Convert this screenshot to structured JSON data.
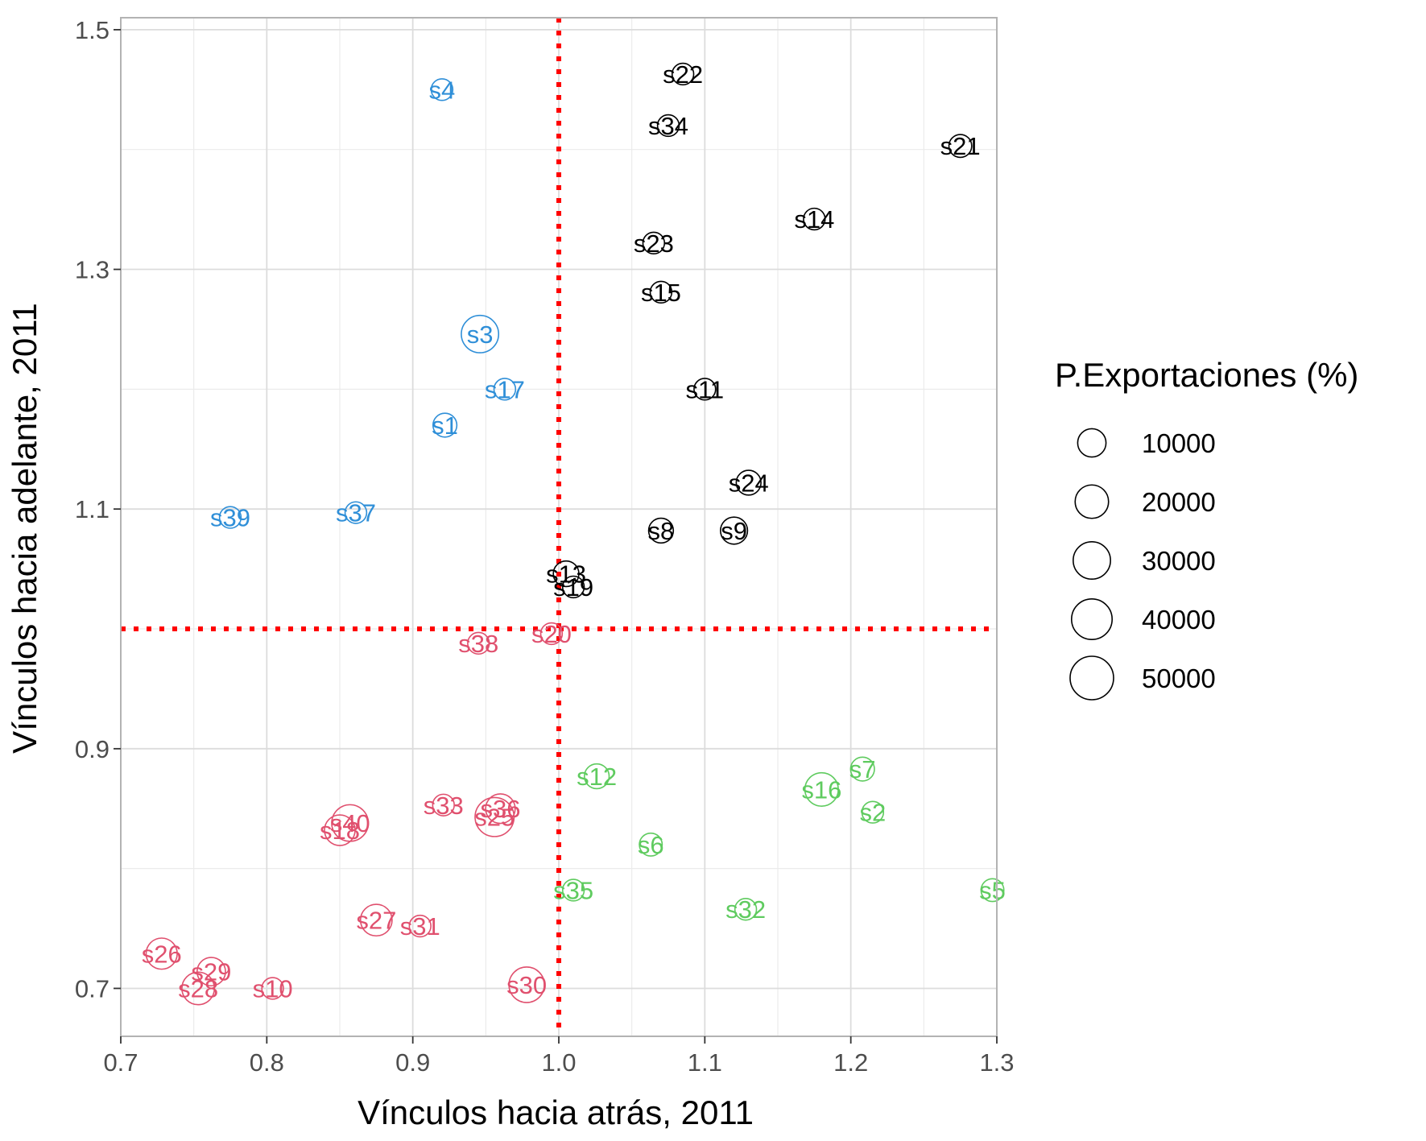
{
  "chart_data": {
    "type": "scatter",
    "xlabel": "Vínculos hacia atrás, 2011",
    "ylabel": "Vínculos hacia adelante, 2011",
    "xlim": [
      0.7,
      1.3
    ],
    "ylim": [
      0.66,
      1.51
    ],
    "xticks": [
      "0.7",
      "0.8",
      "0.9",
      "1.0",
      "1.1",
      "1.2",
      "1.3"
    ],
    "yticks": [
      "0.7",
      "0.9",
      "1.1",
      "1.3",
      "1.5"
    ],
    "grid": true,
    "reference_lines": {
      "x": 1.0,
      "y": 1.0,
      "color": "#ff0000",
      "style": "dotted"
    },
    "group_colors": {
      "high_both": "#000000",
      "forward_only": "#2f8fd8",
      "low_both": "#e0506e",
      "backward_only": "#5fcb5f"
    },
    "legend": {
      "title": "P.Exportaciones (%)",
      "position": "right",
      "sizes": [
        10000,
        20000,
        30000,
        40000,
        50000
      ],
      "labels": [
        "10000",
        "20000",
        "30000",
        "40000",
        "50000"
      ]
    },
    "points": [
      {
        "label": "s22",
        "x": 1.085,
        "y": 1.463,
        "size": 2000,
        "group": "high_both"
      },
      {
        "label": "s34",
        "x": 1.075,
        "y": 1.42,
        "size": 2000,
        "group": "high_both"
      },
      {
        "label": "s21",
        "x": 1.275,
        "y": 1.403,
        "size": 3000,
        "group": "high_both"
      },
      {
        "label": "s14",
        "x": 1.175,
        "y": 1.342,
        "size": 2000,
        "group": "high_both"
      },
      {
        "label": "s23",
        "x": 1.065,
        "y": 1.322,
        "size": 2000,
        "group": "high_both"
      },
      {
        "label": "s15",
        "x": 1.07,
        "y": 1.281,
        "size": 2000,
        "group": "high_both"
      },
      {
        "label": "s11",
        "x": 1.1,
        "y": 1.2,
        "size": 2000,
        "group": "high_both"
      },
      {
        "label": "s24",
        "x": 1.13,
        "y": 1.122,
        "size": 5000,
        "group": "high_both"
      },
      {
        "label": "s8",
        "x": 1.07,
        "y": 1.082,
        "size": 5000,
        "group": "high_both"
      },
      {
        "label": "s9",
        "x": 1.12,
        "y": 1.082,
        "size": 8000,
        "group": "high_both"
      },
      {
        "label": "s13",
        "x": 1.005,
        "y": 1.046,
        "size": 6000,
        "group": "high_both"
      },
      {
        "label": "s19",
        "x": 1.01,
        "y": 1.035,
        "size": 2000,
        "group": "high_both"
      },
      {
        "label": "s4",
        "x": 0.92,
        "y": 1.45,
        "size": 2000,
        "group": "forward_only"
      },
      {
        "label": "s3",
        "x": 0.946,
        "y": 1.246,
        "size": 30000,
        "group": "forward_only"
      },
      {
        "label": "s17",
        "x": 0.963,
        "y": 1.2,
        "size": 2000,
        "group": "forward_only"
      },
      {
        "label": "s1",
        "x": 0.922,
        "y": 1.17,
        "size": 4000,
        "group": "forward_only"
      },
      {
        "label": "s39",
        "x": 0.775,
        "y": 1.093,
        "size": 2000,
        "group": "forward_only"
      },
      {
        "label": "s37",
        "x": 0.861,
        "y": 1.097,
        "size": 2000,
        "group": "forward_only"
      },
      {
        "label": "s38",
        "x": 0.945,
        "y": 0.988,
        "size": 2000,
        "group": "low_both"
      },
      {
        "label": "s20",
        "x": 0.995,
        "y": 0.996,
        "size": 2000,
        "group": "low_both"
      },
      {
        "label": "s33",
        "x": 0.921,
        "y": 0.853,
        "size": 2000,
        "group": "low_both"
      },
      {
        "label": "s36",
        "x": 0.96,
        "y": 0.85,
        "size": 12000,
        "group": "low_both"
      },
      {
        "label": "s25",
        "x": 0.956,
        "y": 0.843,
        "size": 35000,
        "group": "low_both"
      },
      {
        "label": "s40",
        "x": 0.857,
        "y": 0.838,
        "size": 28000,
        "group": "low_both"
      },
      {
        "label": "s18",
        "x": 0.85,
        "y": 0.832,
        "size": 14000,
        "group": "low_both"
      },
      {
        "label": "s27",
        "x": 0.875,
        "y": 0.757,
        "size": 16000,
        "group": "low_both"
      },
      {
        "label": "s31",
        "x": 0.905,
        "y": 0.752,
        "size": 2000,
        "group": "low_both"
      },
      {
        "label": "s26",
        "x": 0.728,
        "y": 0.729,
        "size": 15000,
        "group": "low_both"
      },
      {
        "label": "s29",
        "x": 0.762,
        "y": 0.714,
        "size": 10000,
        "group": "low_both"
      },
      {
        "label": "s28",
        "x": 0.753,
        "y": 0.7,
        "size": 18000,
        "group": "low_both"
      },
      {
        "label": "s10",
        "x": 0.804,
        "y": 0.7,
        "size": 2000,
        "group": "low_both"
      },
      {
        "label": "s30",
        "x": 0.978,
        "y": 0.703,
        "size": 25000,
        "group": "low_both"
      },
      {
        "label": "s12",
        "x": 1.026,
        "y": 0.877,
        "size": 5000,
        "group": "backward_only"
      },
      {
        "label": "s7",
        "x": 1.208,
        "y": 0.883,
        "size": 4000,
        "group": "backward_only"
      },
      {
        "label": "s16",
        "x": 1.18,
        "y": 0.866,
        "size": 20000,
        "group": "backward_only"
      },
      {
        "label": "s2",
        "x": 1.215,
        "y": 0.847,
        "size": 2000,
        "group": "backward_only"
      },
      {
        "label": "s6",
        "x": 1.063,
        "y": 0.82,
        "size": 3000,
        "group": "backward_only"
      },
      {
        "label": "s35",
        "x": 1.01,
        "y": 0.782,
        "size": 2000,
        "group": "backward_only"
      },
      {
        "label": "s5",
        "x": 1.297,
        "y": 0.782,
        "size": 3000,
        "group": "backward_only"
      },
      {
        "label": "s32",
        "x": 1.128,
        "y": 0.766,
        "size": 2000,
        "group": "backward_only"
      }
    ]
  }
}
